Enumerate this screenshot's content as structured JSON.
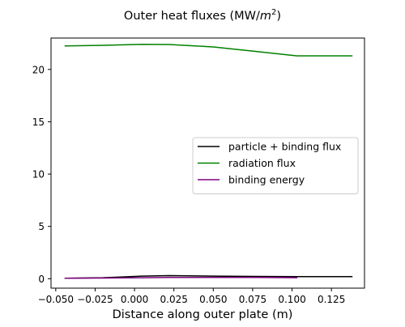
{
  "chart_data": {
    "type": "line",
    "title": "Outer heat fluxes (MW/m²)",
    "title_parts": {
      "base": "Outer heat fluxes (MW/",
      "var": "m",
      "sup": "2",
      "tail": ")"
    },
    "xlabel": "Distance along outer plate (m)",
    "ylabel": "",
    "xlim": [
      -0.053,
      0.146
    ],
    "ylim": [
      -0.9,
      23.0
    ],
    "xticks": [
      -0.05,
      -0.025,
      0.0,
      0.025,
      0.05,
      0.075,
      0.1,
      0.125
    ],
    "xtick_labels": [
      "−0.050",
      "−0.025",
      "0.000",
      "0.025",
      "0.050",
      "0.075",
      "0.100",
      "0.125"
    ],
    "yticks": [
      0,
      5,
      10,
      15,
      20
    ],
    "ytick_labels": [
      "0",
      "5",
      "10",
      "15",
      "20"
    ],
    "grid": false,
    "legend_position": "center-right",
    "series": [
      {
        "name": "particle + binding flux",
        "color": "#000000",
        "x": [
          -0.044,
          -0.02,
          0.005,
          0.022,
          0.05,
          0.075,
          0.103,
          0.138
        ],
        "y": [
          0.05,
          0.1,
          0.25,
          0.3,
          0.25,
          0.22,
          0.2,
          0.2
        ]
      },
      {
        "name": "radiation flux",
        "color": "#008000",
        "x": [
          -0.044,
          -0.02,
          0.005,
          0.022,
          0.05,
          0.075,
          0.103,
          0.138
        ],
        "y": [
          22.25,
          22.3,
          22.4,
          22.38,
          22.15,
          21.75,
          21.3,
          21.3
        ]
      },
      {
        "name": "binding energy",
        "color": "#800080",
        "x": [
          -0.044,
          -0.02,
          0.005,
          0.022,
          0.05,
          0.075,
          0.103
        ],
        "y": [
          0.05,
          0.07,
          0.1,
          0.12,
          0.12,
          0.12,
          0.1
        ]
      }
    ]
  }
}
